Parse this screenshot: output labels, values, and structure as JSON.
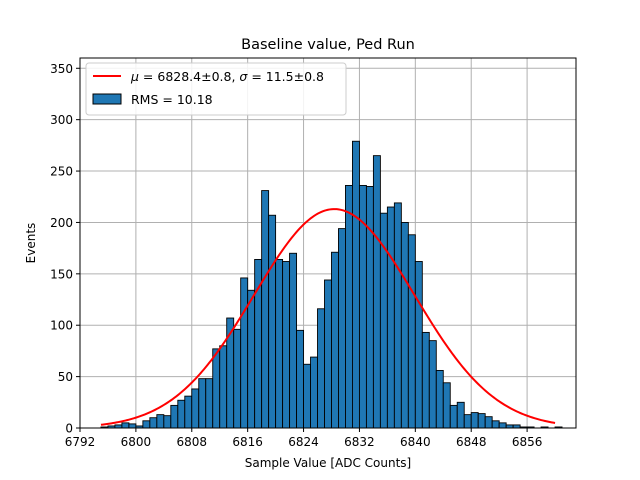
{
  "chart_data": {
    "type": "bar",
    "title": "Baseline value, Ped Run",
    "xlabel": "Sample Value [ADC Counts]",
    "ylabel": "Events",
    "xlim": [
      6792,
      6863
    ],
    "ylim": [
      0,
      360
    ],
    "xticks": [
      6792,
      6800,
      6808,
      6816,
      6824,
      6832,
      6840,
      6848,
      6856
    ],
    "yticks": [
      0,
      50,
      100,
      150,
      200,
      250,
      300,
      350
    ],
    "grid": true,
    "legend_position": "top-left",
    "bar_color": "#1f77b4",
    "bar_edge_color": "#000000",
    "fit_color": "#ff0000",
    "histogram": {
      "name": "RMS = 10.18",
      "bin_start": 6795,
      "bin_width": 1,
      "counts": [
        1,
        2,
        3,
        5,
        4,
        2,
        7,
        10,
        13,
        12,
        22,
        27,
        31,
        38,
        48,
        48,
        77,
        80,
        107,
        96,
        146,
        134,
        164,
        231,
        207,
        164,
        162,
        170,
        95,
        62,
        69,
        116,
        144,
        171,
        194,
        236,
        279,
        236,
        235,
        265,
        209,
        215,
        219,
        200,
        188,
        162,
        93,
        85,
        56,
        44,
        22,
        25,
        13,
        15,
        14,
        11,
        7,
        5,
        3,
        3,
        1,
        1,
        0,
        1,
        0,
        1
      ]
    },
    "fit": {
      "name": "μ = 6828.4±0.8, σ = 11.5±0.8",
      "label_mu": "μ",
      "label_mu_value": " = 6828.4±0.8, ",
      "label_sigma": "σ",
      "label_sigma_value": " = 11.5±0.8",
      "type": "gaussian",
      "mu": 6828.4,
      "sigma": 11.5,
      "amplitude": 213,
      "x_range": [
        6795,
        6860
      ]
    },
    "rms_label": "RMS = 10.18"
  }
}
